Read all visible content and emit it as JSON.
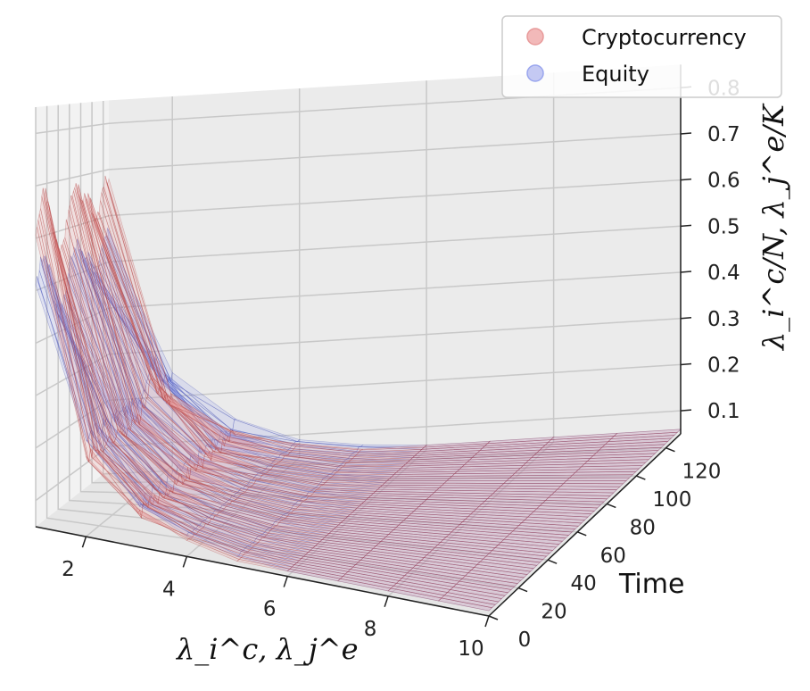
{
  "chart_data": {
    "type": "surface3d",
    "xlabel": "λ_i^c, λ_j^e",
    "ylabel": "Time",
    "zlabel": "λ_i^c/N, λ_j^e/K",
    "x_ticks": [
      2,
      4,
      6,
      8,
      10
    ],
    "y_ticks": [
      0,
      20,
      40,
      60,
      80,
      100,
      120
    ],
    "z_ticks": [
      0.1,
      0.2,
      0.3,
      0.4,
      0.5,
      0.6,
      0.7,
      0.8
    ],
    "x_range": [
      1,
      10
    ],
    "y_range": [
      0,
      130
    ],
    "z_range": [
      0.05,
      0.85
    ],
    "legend_placement": "top-right",
    "series": [
      {
        "name": "Cryptocurrency",
        "color": "#e89a9a",
        "line_color": "#b03a3a",
        "eigenvalue_share_profile": [
          0.62,
          0.2,
          0.11,
          0.08,
          0.06,
          0.05,
          0.045,
          0.04,
          0.035,
          0.03
        ]
      },
      {
        "name": "Equity",
        "color": "#9aa6ee",
        "line_color": "#3a46b0",
        "eigenvalue_share_profile": [
          0.5,
          0.24,
          0.13,
          0.09,
          0.07,
          0.055,
          0.045,
          0.04,
          0.035,
          0.03
        ]
      }
    ]
  }
}
